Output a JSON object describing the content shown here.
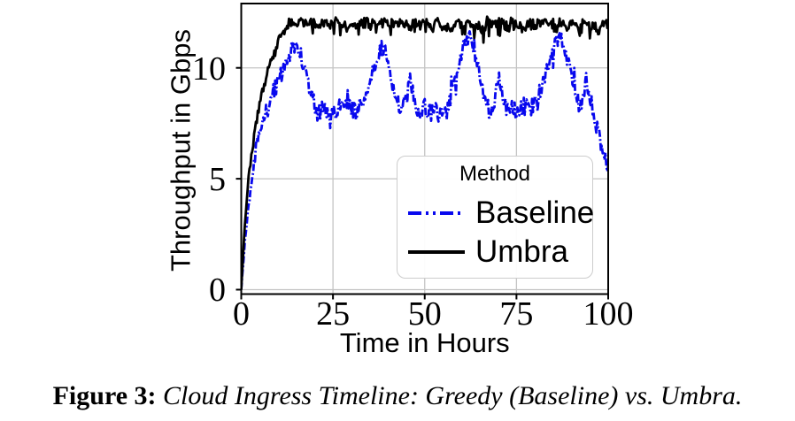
{
  "figure": {
    "caption_label": "Figure 3:",
    "caption_text": "Cloud Ingress Timeline: Greedy (Baseline) vs. Umbra."
  },
  "chart_data": {
    "type": "line",
    "title": "",
    "xlabel": "Time in Hours",
    "ylabel": "Throughput in Gbps",
    "xlim": [
      0,
      100
    ],
    "ylim": [
      -0.2,
      12.9
    ],
    "x_ticks": [
      0,
      25,
      50,
      75,
      100
    ],
    "y_ticks": [
      0,
      5,
      10
    ],
    "grid": true,
    "grid_color": "#c4c4c4",
    "legend": {
      "title": "Method",
      "position": "lower-right-inside",
      "entries": [
        {
          "label": "Baseline",
          "color": "#0808ee",
          "style": "dashdot"
        },
        {
          "label": "Umbra",
          "color": "#000000",
          "style": "solid"
        }
      ]
    },
    "x": [
      0,
      1,
      2,
      3,
      4,
      5,
      6,
      7,
      8,
      9,
      10,
      11,
      12,
      13,
      14,
      15,
      16,
      17,
      18,
      19,
      20,
      21,
      22,
      23,
      24,
      25,
      26,
      27,
      28,
      29,
      30,
      31,
      32,
      33,
      34,
      35,
      36,
      37,
      38,
      39,
      40,
      41,
      42,
      43,
      44,
      45,
      46,
      47,
      48,
      49,
      50,
      51,
      52,
      53,
      54,
      55,
      56,
      57,
      58,
      59,
      60,
      61,
      62,
      63,
      64,
      65,
      66,
      67,
      68,
      69,
      70,
      71,
      72,
      73,
      74,
      75,
      76,
      77,
      78,
      79,
      80,
      81,
      82,
      83,
      84,
      85,
      86,
      87,
      88,
      89,
      90,
      91,
      92,
      93,
      94,
      95,
      96,
      97,
      98,
      99,
      100
    ],
    "series": [
      {
        "name": "Baseline",
        "color": "#0808ee",
        "style": "dashdot",
        "noise_amplitude": 0.4,
        "values": [
          0,
          2.2,
          3.9,
          5.2,
          6.2,
          7.0,
          7.6,
          8.1,
          8.6,
          9.0,
          9.4,
          9.8,
          10.1,
          10.5,
          10.9,
          11.2,
          10.7,
          10.1,
          9.5,
          8.9,
          8.3,
          7.9,
          8.1,
          7.8,
          8.0,
          8.2,
          8.0,
          8.3,
          8.1,
          8.4,
          8.2,
          8.0,
          8.3,
          8.5,
          8.9,
          9.4,
          10.0,
          10.6,
          11.0,
          10.8,
          10.2,
          9.5,
          8.8,
          8.3,
          8.0,
          8.4,
          9.6,
          8.8,
          8.2,
          8.0,
          8.3,
          8.1,
          8.4,
          8.1,
          7.9,
          8.2,
          8.0,
          8.5,
          9.2,
          9.9,
          10.6,
          11.1,
          11.4,
          11.0,
          10.3,
          9.5,
          8.8,
          8.3,
          8.0,
          8.5,
          9.6,
          8.9,
          8.3,
          8.0,
          8.2,
          8.0,
          8.3,
          8.1,
          8.4,
          8.2,
          8.5,
          8.8,
          9.2,
          9.7,
          10.3,
          10.8,
          11.2,
          11.3,
          10.9,
          10.3,
          9.5,
          8.8,
          8.4,
          8.7,
          9.4,
          8.8,
          8.0,
          7.3,
          6.6,
          6.0,
          5.6
        ]
      },
      {
        "name": "Umbra",
        "color": "#000000",
        "style": "solid",
        "noise_amplitude": 0.22,
        "values": [
          0,
          3.0,
          5.0,
          6.4,
          7.5,
          8.4,
          9.1,
          9.7,
          10.2,
          10.6,
          11.1,
          11.5,
          11.8,
          12.0,
          12.0,
          11.9,
          12.1,
          12.0,
          11.9,
          12.1,
          12.0,
          11.8,
          12.0,
          12.1,
          11.9,
          12.0,
          12.1,
          11.9,
          12.0,
          11.8,
          12.1,
          12.0,
          11.9,
          12.0,
          12.1,
          11.9,
          12.0,
          11.8,
          12.0,
          12.1,
          11.9,
          12.0,
          12.1,
          12.0,
          11.9,
          12.0,
          11.8,
          12.1,
          12.0,
          11.9,
          12.0,
          12.1,
          11.9,
          12.0,
          12.1,
          11.9,
          12.0,
          11.8,
          12.0,
          12.1,
          11.9,
          12.0,
          12.1,
          12.0,
          11.9,
          12.0,
          11.8,
          12.1,
          12.0,
          11.9,
          12.0,
          12.1,
          11.9,
          12.0,
          12.1,
          11.9,
          12.0,
          11.8,
          12.0,
          12.1,
          11.9,
          12.0,
          12.1,
          12.0,
          11.9,
          12.0,
          11.8,
          12.1,
          12.0,
          11.9,
          12.0,
          12.1,
          11.9,
          12.0,
          12.1,
          11.9,
          12.0,
          11.8,
          12.0,
          12.1,
          11.9
        ]
      }
    ]
  }
}
